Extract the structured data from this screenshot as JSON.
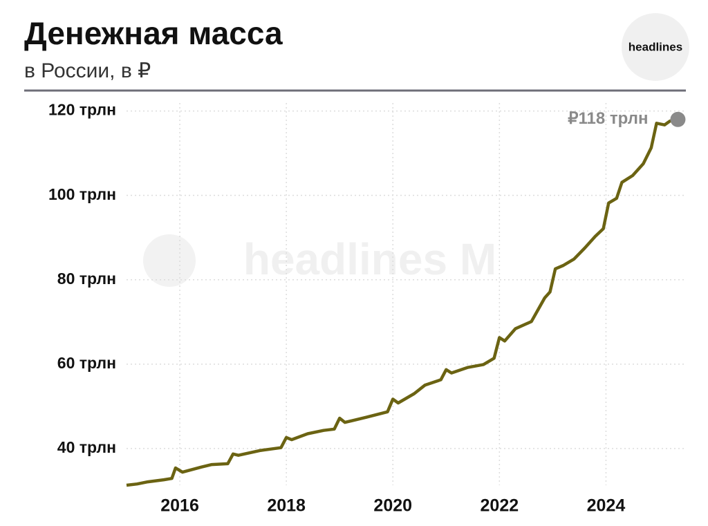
{
  "chart_data": {
    "type": "line",
    "title": "Денежная масса",
    "subtitle": "в России, в ₽",
    "logo": "headlines",
    "watermark": "headlines M",
    "annotation": "₽118 трлн",
    "x": [
      2015.0,
      2015.2,
      2015.4,
      2015.7,
      2015.85,
      2015.92,
      2016.05,
      2016.4,
      2016.6,
      2016.9,
      2017.0,
      2017.1,
      2017.5,
      2017.9,
      2018.0,
      2018.1,
      2018.4,
      2018.7,
      2018.9,
      2019.0,
      2019.1,
      2019.5,
      2019.9,
      2020.0,
      2020.1,
      2020.4,
      2020.6,
      2020.9,
      2021.0,
      2021.1,
      2021.4,
      2021.7,
      2021.9,
      2022.0,
      2022.1,
      2022.3,
      2022.6,
      2022.85,
      2022.95,
      2023.05,
      2023.2,
      2023.4,
      2023.6,
      2023.8,
      2023.95,
      2024.05,
      2024.2,
      2024.3,
      2024.5,
      2024.7,
      2024.85,
      2024.95,
      2025.1,
      2025.2,
      2025.35
    ],
    "series": [
      {
        "name": "Денежная масса",
        "color": "#6b6312",
        "values": [
          31.3,
          31.6,
          32.1,
          32.6,
          32.9,
          35.4,
          34.4,
          35.6,
          36.2,
          36.4,
          38.7,
          38.4,
          39.5,
          40.2,
          42.6,
          42.1,
          43.5,
          44.3,
          44.6,
          47.2,
          46.2,
          47.4,
          48.7,
          51.7,
          50.8,
          53.0,
          55.0,
          56.3,
          58.7,
          57.9,
          59.2,
          59.9,
          61.4,
          66.3,
          65.5,
          68.4,
          70.1,
          75.7,
          77.1,
          82.6,
          83.4,
          84.9,
          87.5,
          90.3,
          92.1,
          98.2,
          99.3,
          103.1,
          104.7,
          107.5,
          111.3,
          117.1,
          116.7,
          117.6,
          118
        ]
      }
    ],
    "xlim": [
      2015.0,
      2025.5
    ],
    "xticks": [
      2016,
      2018,
      2020,
      2022,
      2024
    ],
    "ylim": [
      31.3,
      121.9
    ],
    "yticks": [
      {
        "value": 40,
        "label": "40 трлн"
      },
      {
        "value": 60,
        "label": "60 трлн"
      },
      {
        "value": 80,
        "label": "80 трлн"
      },
      {
        "value": 100,
        "label": "100 трлн"
      },
      {
        "value": 120,
        "label": "120 трлн"
      }
    ],
    "grid": true,
    "marker_color": "#8a8a8a"
  }
}
